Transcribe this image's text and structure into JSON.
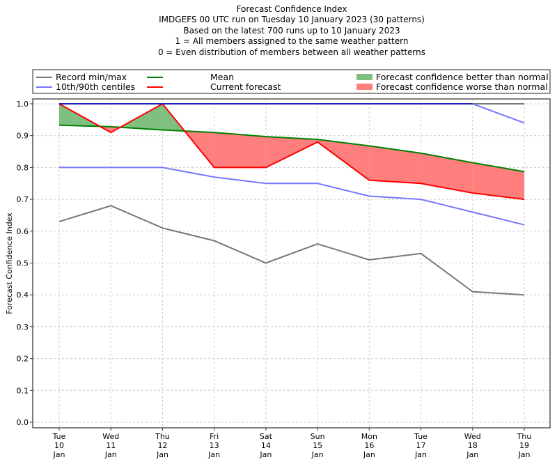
{
  "chart_data": {
    "type": "line",
    "title_lines": [
      "Forecast Confidence Index",
      "IMDGEFS 00 UTC run on Tuesday 10 January 2023 (30 patterns)",
      "Based on the latest 700 runs up to 10 January 2023",
      "1 = All members assigned to the same weather pattern",
      "0 = Even distribution of members between all weather patterns"
    ],
    "xlabel": "",
    "ylabel": "Forecast Confidence Index",
    "ylim": [
      0.0,
      1.0
    ],
    "yticks": [
      "0.0",
      "0.1",
      "0.2",
      "0.3",
      "0.4",
      "0.5",
      "0.6",
      "0.7",
      "0.8",
      "0.9",
      "1.0"
    ],
    "grid": true,
    "categories": [
      {
        "day": "Tue",
        "date": "10",
        "month": "Jan"
      },
      {
        "day": "Wed",
        "date": "11",
        "month": "Jan"
      },
      {
        "day": "Thu",
        "date": "12",
        "month": "Jan"
      },
      {
        "day": "Fri",
        "date": "13",
        "month": "Jan"
      },
      {
        "day": "Sat",
        "date": "14",
        "month": "Jan"
      },
      {
        "day": "Sun",
        "date": "15",
        "month": "Jan"
      },
      {
        "day": "Mon",
        "date": "16",
        "month": "Jan"
      },
      {
        "day": "Tue",
        "date": "17",
        "month": "Jan"
      },
      {
        "day": "Wed",
        "date": "18",
        "month": "Jan"
      },
      {
        "day": "Thu",
        "date": "19",
        "month": "Jan"
      }
    ],
    "series": [
      {
        "name": "Record max",
        "legend_group": "Record min/max",
        "color": "#777777",
        "values": [
          1.0,
          1.0,
          1.0,
          1.0,
          1.0,
          1.0,
          1.0,
          1.0,
          1.0,
          1.0
        ]
      },
      {
        "name": "Record min",
        "legend_group": "Record min/max",
        "color": "#777777",
        "values": [
          0.63,
          0.68,
          0.61,
          0.57,
          0.5,
          0.56,
          0.51,
          0.53,
          0.41,
          0.4
        ]
      },
      {
        "name": "90th centile",
        "legend_group": "10th/90th centiles",
        "color": "#7777ff",
        "values": [
          1.0,
          1.0,
          1.0,
          1.0,
          1.0,
          1.0,
          1.0,
          1.0,
          1.0,
          0.94
        ]
      },
      {
        "name": "10th centile",
        "legend_group": "10th/90th centiles",
        "color": "#7777ff",
        "values": [
          0.8,
          0.8,
          0.8,
          0.77,
          0.75,
          0.75,
          0.71,
          0.7,
          0.66,
          0.62
        ]
      },
      {
        "name": "Mean",
        "legend_group": "Mean",
        "color": "#008000",
        "values": [
          0.933,
          0.928,
          0.918,
          0.91,
          0.897,
          0.888,
          0.868,
          0.845,
          0.815,
          0.787
        ]
      },
      {
        "name": "Current forecast",
        "legend_group": "Current forecast",
        "color": "#ff0000",
        "values": [
          1.0,
          0.91,
          1.0,
          0.8,
          0.8,
          0.88,
          0.76,
          0.75,
          0.72,
          0.7
        ]
      }
    ],
    "fills": {
      "better": {
        "label": "Forecast confidence better than normal",
        "color": "#7fbf7f"
      },
      "worse": {
        "label": "Forecast confidence worse than normal",
        "color": "#ff7f7f"
      }
    },
    "overlap_line_color": "#2222bb",
    "legend": {
      "placement": "top, above plot",
      "entries": [
        {
          "label": "Record min/max",
          "kind": "line",
          "color": "#777777"
        },
        {
          "label": "10th/90th centiles",
          "kind": "line",
          "color": "#7777ff"
        },
        {
          "label": "Mean",
          "kind": "line",
          "color": "#008000"
        },
        {
          "label": "Current forecast",
          "kind": "line",
          "color": "#ff0000"
        },
        {
          "label": "Forecast confidence better than normal",
          "kind": "patch",
          "color": "#7fbf7f"
        },
        {
          "label": "Forecast confidence worse than normal",
          "kind": "patch",
          "color": "#ff7f7f"
        }
      ]
    }
  }
}
